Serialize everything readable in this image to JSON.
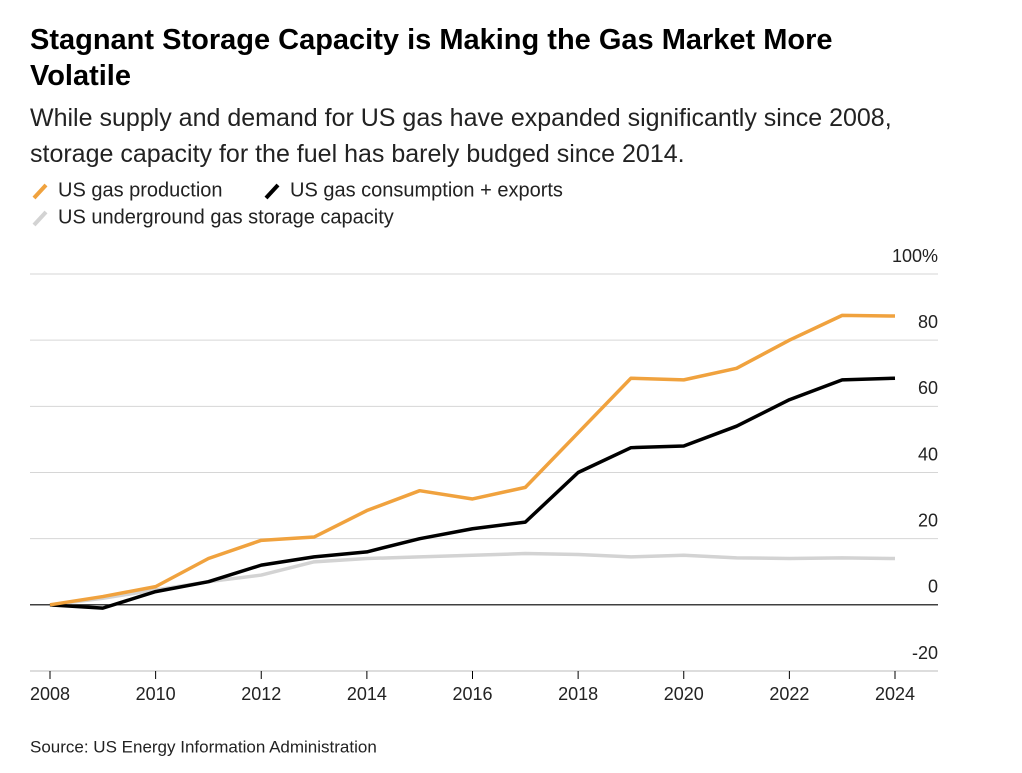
{
  "chart_data": {
    "type": "line",
    "title": "Stagnant Storage Capacity is Making the Gas Market More Volatile",
    "subtitle": "While supply and demand for US gas have expanded significantly since 2008, storage capacity for the fuel has barely budged since 2014.",
    "source": "Source: US Energy Information Administration",
    "x": [
      2008,
      2009,
      2010,
      2011,
      2012,
      2013,
      2014,
      2015,
      2016,
      2017,
      2018,
      2019,
      2020,
      2021,
      2022,
      2023,
      2024
    ],
    "series": [
      {
        "name": "US gas production",
        "color": "#f0a23e",
        "values": [
          0,
          2.5,
          5.5,
          14,
          19.5,
          20.5,
          28.5,
          34.5,
          32,
          35.5,
          52,
          68.5,
          68,
          71.5,
          80,
          87.5,
          87.3
        ]
      },
      {
        "name": "US gas consumption + exports",
        "color": "#000000",
        "values": [
          0,
          -1,
          4,
          7,
          12,
          14.5,
          16,
          20,
          23,
          25,
          40,
          47.5,
          48,
          54,
          62,
          68,
          68.5
        ]
      },
      {
        "name": "US underground gas storage capacity",
        "color": "#d3d3d3",
        "values": [
          0,
          2,
          4.5,
          7,
          9,
          13,
          14,
          14.5,
          15,
          15.5,
          15.2,
          14.5,
          15,
          14.2,
          14,
          14.2,
          14
        ]
      }
    ],
    "xlim": [
      2008,
      2024
    ],
    "xticks": [
      2008,
      2010,
      2012,
      2014,
      2016,
      2018,
      2020,
      2022,
      2024
    ],
    "ylim": [
      -20,
      100
    ],
    "yticks": [
      -20,
      0,
      20,
      40,
      60,
      80,
      {
        "value": 100,
        "label": "100%"
      }
    ],
    "grid": true
  }
}
